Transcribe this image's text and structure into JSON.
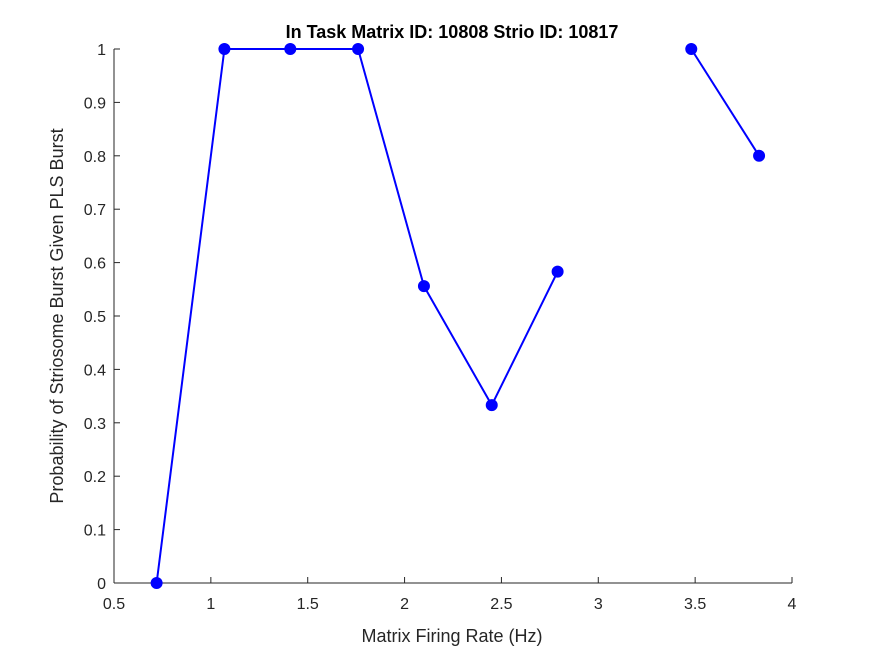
{
  "chart_data": {
    "type": "line",
    "title": "In Task Matrix ID: 10808 Strio ID: 10817",
    "xlabel": "Matrix Firing Rate (Hz)",
    "ylabel": "Probability of Striosome Burst Given PLS Burst",
    "xlim": [
      0.5,
      4
    ],
    "ylim": [
      0,
      1
    ],
    "xticks": [
      "0.5",
      "1",
      "1.5",
      "2",
      "2.5",
      "3",
      "3.5",
      "4"
    ],
    "yticks": [
      "0",
      "0.1",
      "0.2",
      "0.3",
      "0.4",
      "0.5",
      "0.6",
      "0.7",
      "0.8",
      "0.9",
      "1"
    ],
    "grid": false,
    "color": "#0000ff",
    "series": [
      {
        "x": [
          0.72,
          1.07,
          1.41,
          1.76,
          2.1,
          2.45,
          2.79,
          3.14,
          3.48,
          3.83
        ],
        "y": [
          0.0,
          1.0,
          1.0,
          1.0,
          0.556,
          0.333,
          0.583,
          null,
          1.0,
          0.8
        ]
      }
    ]
  }
}
